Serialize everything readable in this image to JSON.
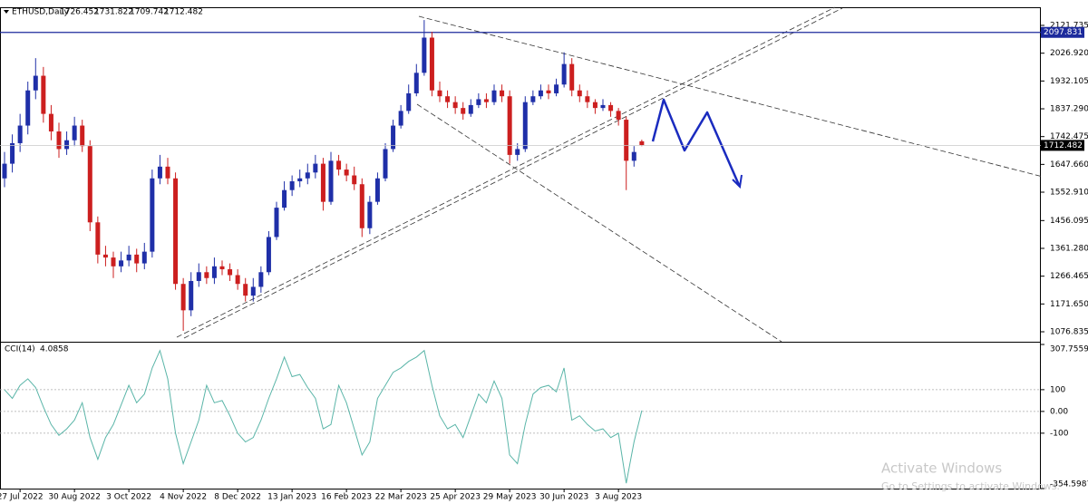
{
  "chart_data": [
    {
      "type": "candlestick",
      "title": "ETHUSD,Daily",
      "categories": [
        null,
        null,
        "27 Jul 2022",
        null,
        null,
        null,
        null,
        null,
        null,
        "30 Aug 2022",
        null,
        null,
        null,
        null,
        null,
        null,
        "3 Oct 2022",
        null,
        null,
        null,
        null,
        null,
        null,
        "4 Nov 2022",
        null,
        null,
        null,
        null,
        null,
        null,
        "8 Dec 2022",
        null,
        null,
        null,
        null,
        null,
        null,
        "13 Jan 2023",
        null,
        null,
        null,
        null,
        null,
        null,
        "16 Feb 2023",
        null,
        null,
        null,
        null,
        null,
        null,
        "22 Mar 2023",
        null,
        null,
        null,
        null,
        null,
        null,
        "25 Apr 2023",
        null,
        null,
        null,
        null,
        null,
        null,
        "29 May 2023",
        null,
        null,
        null,
        null,
        null,
        null,
        "30 Jun 2023",
        null,
        null,
        null,
        null,
        null,
        null,
        "3 Aug 2023",
        null,
        null,
        null
      ],
      "open": [
        1600,
        1650,
        1720,
        1780,
        1900,
        1950,
        1820,
        1760,
        1700,
        1730,
        1780,
        1710,
        1450,
        1340,
        1330,
        1300,
        1320,
        1340,
        1310,
        1350,
        1600,
        1640,
        1600,
        1240,
        1150,
        1250,
        1280,
        1260,
        1300,
        1290,
        1270,
        1240,
        1200,
        1230,
        1280,
        1400,
        1500,
        1560,
        1590,
        1600,
        1620,
        1650,
        1520,
        1660,
        1630,
        1610,
        1580,
        1430,
        1520,
        1600,
        1700,
        1780,
        1830,
        1890,
        1960,
        2080,
        1900,
        1880,
        1860,
        1840,
        1820,
        1850,
        1870,
        1860,
        1900,
        1880,
        1680,
        1700,
        1860,
        1880,
        1900,
        1890,
        1920,
        1990,
        1900,
        1880,
        1860,
        1840,
        1850,
        1830,
        1800,
        1660,
        1726.452
      ],
      "high": [
        1690,
        1750,
        1820,
        1930,
        2010,
        1980,
        1850,
        1790,
        1760,
        1810,
        1800,
        1730,
        1470,
        1370,
        1350,
        1350,
        1370,
        1360,
        1380,
        1630,
        1680,
        1670,
        1620,
        1260,
        1280,
        1310,
        1300,
        1330,
        1320,
        1310,
        1290,
        1260,
        1260,
        1300,
        1420,
        1520,
        1590,
        1610,
        1630,
        1650,
        1680,
        1670,
        1690,
        1680,
        1650,
        1640,
        1600,
        1540,
        1620,
        1720,
        1800,
        1850,
        1920,
        1990,
        2140,
        2100,
        1930,
        1900,
        1880,
        1860,
        1870,
        1890,
        1890,
        1920,
        1920,
        1900,
        1720,
        1880,
        1900,
        1920,
        1920,
        1940,
        2030,
        2010,
        1920,
        1900,
        1870,
        1870,
        1860,
        1840,
        1810,
        1710,
        1731.822
      ],
      "low": [
        1570,
        1620,
        1690,
        1750,
        1870,
        1790,
        1730,
        1670,
        1680,
        1710,
        1690,
        1420,
        1310,
        1300,
        1260,
        1280,
        1300,
        1280,
        1290,
        1330,
        1580,
        1580,
        1220,
        1080,
        1130,
        1230,
        1240,
        1240,
        1270,
        1250,
        1220,
        1180,
        1180,
        1210,
        1270,
        1390,
        1490,
        1540,
        1570,
        1580,
        1600,
        1490,
        1510,
        1610,
        1590,
        1560,
        1400,
        1410,
        1510,
        1590,
        1690,
        1770,
        1820,
        1880,
        1950,
        1880,
        1860,
        1840,
        1820,
        1800,
        1810,
        1840,
        1840,
        1850,
        1860,
        1650,
        1660,
        1690,
        1850,
        1870,
        1870,
        1880,
        1910,
        1880,
        1860,
        1840,
        1820,
        1830,
        1810,
        1780,
        1560,
        1640,
        1709.742
      ],
      "close": [
        1650,
        1720,
        1780,
        1900,
        1950,
        1820,
        1760,
        1700,
        1730,
        1780,
        1710,
        1450,
        1340,
        1330,
        1300,
        1320,
        1340,
        1310,
        1350,
        1600,
        1640,
        1600,
        1240,
        1150,
        1250,
        1280,
        1260,
        1300,
        1290,
        1270,
        1240,
        1200,
        1230,
        1280,
        1400,
        1500,
        1560,
        1590,
        1600,
        1620,
        1650,
        1520,
        1660,
        1630,
        1610,
        1580,
        1430,
        1520,
        1600,
        1700,
        1780,
        1830,
        1890,
        1960,
        2080,
        1900,
        1880,
        1860,
        1840,
        1820,
        1850,
        1870,
        1860,
        1900,
        1880,
        1680,
        1700,
        1860,
        1880,
        1900,
        1890,
        1920,
        1990,
        1900,
        1880,
        1860,
        1840,
        1850,
        1830,
        1800,
        1660,
        1690,
        1712.482
      ],
      "up_color": "#1f2fa8",
      "down_color": "#cc1f1f",
      "ylim": [
        1042.8,
        2183.6
      ],
      "yticks": [
        2121.735,
        {
          "value": 2026.92,
          "label": "2026.920"
        },
        1932.105,
        {
          "value": 1837.29,
          "label": "1837.290"
        },
        1742.475,
        {
          "value": 1647.66,
          "label": "1647.660"
        },
        {
          "value": 1552.91,
          "label": "1552.910"
        },
        1456.095,
        {
          "value": 1361.28,
          "label": "1361.280"
        },
        1266.465,
        {
          "value": 1171.65,
          "label": "1171.650"
        },
        1076.835
      ],
      "hline": {
        "value": 2097.831,
        "color": "#1c2a9c"
      }
    },
    {
      "type": "line",
      "title": "CCI(14)",
      "color": "#5ab5a8",
      "values": [
        100,
        60,
        120,
        150,
        110,
        20,
        -60,
        -110,
        -80,
        -40,
        40,
        -120,
        -220,
        -120,
        -60,
        30,
        120,
        40,
        80,
        200,
        280,
        150,
        -100,
        -240,
        -140,
        -40,
        120,
        40,
        50,
        -20,
        -100,
        -140,
        -120,
        -40,
        60,
        150,
        250,
        160,
        170,
        110,
        60,
        -80,
        -60,
        120,
        40,
        -80,
        -200,
        -140,
        60,
        120,
        180,
        200,
        230,
        250,
        280,
        120,
        -20,
        -80,
        -60,
        -120,
        -20,
        80,
        40,
        140,
        60,
        -200,
        -240,
        -60,
        80,
        110,
        120,
        90,
        200,
        -40,
        -20,
        -60,
        -90,
        -80,
        -120,
        -100,
        -330,
        -140,
        4.0858
      ],
      "ylim": [
        -354.5987,
        307.7559
      ],
      "yticks": [
        307.7559,
        100,
        {
          "value": 0,
          "label": "0.00"
        },
        -100,
        -354.5987
      ]
    }
  ],
  "watermark": {
    "title": "Activate Windows",
    "subtitle": "Go to Settings to activate Windows."
  }
}
